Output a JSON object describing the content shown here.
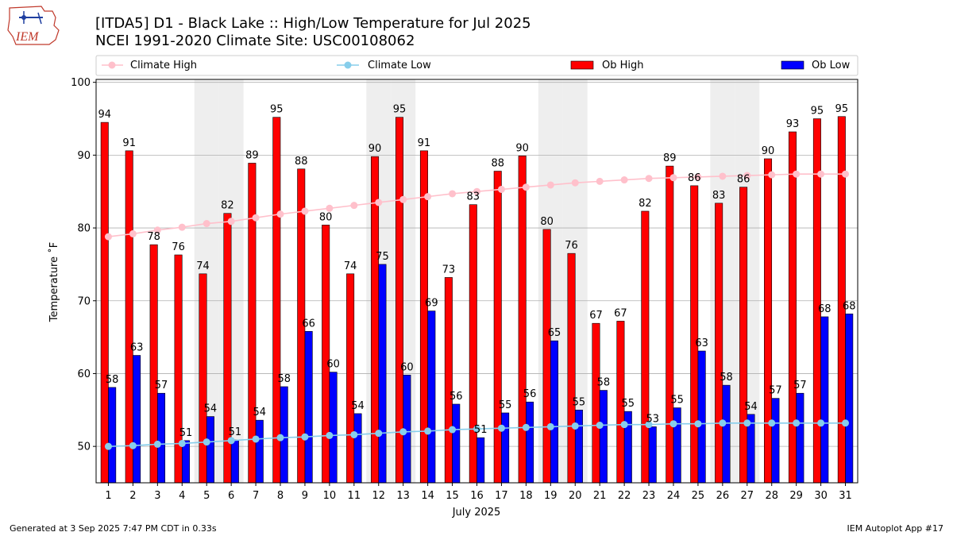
{
  "logo": {
    "text": "IEM"
  },
  "chart_data": {
    "type": "bar",
    "title": "[ITDA5] D1 - Black Lake  :: High/Low Temperature for Jul 2025",
    "subtitle": "NCEI 1991-2020 Climate Site: USC00108062",
    "xlabel": "July 2025",
    "ylabel": "Temperature ˚F",
    "ylim": [
      45,
      100.4
    ],
    "yticks": [
      50,
      60,
      70,
      80,
      90,
      100
    ],
    "categories": [
      "1",
      "2",
      "3",
      "4",
      "5",
      "6",
      "7",
      "8",
      "9",
      "10",
      "11",
      "12",
      "13",
      "14",
      "15",
      "16",
      "17",
      "18",
      "19",
      "20",
      "21",
      "22",
      "23",
      "24",
      "25",
      "26",
      "27",
      "28",
      "29",
      "30",
      "31"
    ],
    "weekend_shading_days": [
      5,
      6,
      12,
      13,
      19,
      20,
      26,
      27
    ],
    "grid": "horizontal",
    "legend_placement": "top",
    "series": [
      {
        "name": "Climate High",
        "kind": "line",
        "color": "#ffc0cb",
        "values": [
          78.8,
          79.2,
          79.7,
          80.1,
          80.6,
          80.9,
          81.4,
          81.9,
          82.3,
          82.7,
          83.1,
          83.5,
          83.9,
          84.3,
          84.7,
          85.0,
          85.3,
          85.6,
          85.9,
          86.2,
          86.4,
          86.6,
          86.8,
          86.9,
          87.0,
          87.1,
          87.2,
          87.3,
          87.4,
          87.4,
          87.4
        ]
      },
      {
        "name": "Climate Low",
        "kind": "line",
        "color": "#87ceeb",
        "values": [
          50.0,
          50.1,
          50.3,
          50.4,
          50.6,
          50.8,
          51.0,
          51.2,
          51.3,
          51.5,
          51.6,
          51.8,
          52.0,
          52.1,
          52.3,
          52.4,
          52.5,
          52.6,
          52.7,
          52.8,
          52.9,
          53.0,
          53.0,
          53.1,
          53.1,
          53.2,
          53.2,
          53.2,
          53.2,
          53.2,
          53.2
        ]
      },
      {
        "name": "Ob High",
        "kind": "bar",
        "color": "#ff0000",
        "values": [
          94.5,
          90.6,
          77.7,
          76.3,
          73.7,
          82.0,
          88.9,
          95.2,
          88.1,
          80.4,
          73.7,
          89.8,
          95.2,
          90.6,
          73.2,
          83.2,
          87.8,
          89.9,
          79.8,
          76.5,
          66.9,
          67.2,
          82.3,
          88.5,
          85.8,
          83.4,
          85.6,
          89.5,
          93.2,
          95.0,
          95.3
        ],
        "labels": [
          "94",
          "91",
          "78",
          "76",
          "74",
          "82",
          "89",
          "95",
          "88",
          "80",
          "74",
          "90",
          "95",
          "91",
          "73",
          "83",
          "88",
          "90",
          "80",
          "76",
          "67",
          "67",
          "82",
          "89",
          "86",
          "83",
          "86",
          "90",
          "93",
          "95",
          "95"
        ]
      },
      {
        "name": "Ob Low",
        "kind": "bar",
        "color": "#0000ff",
        "values": [
          58.1,
          62.5,
          57.3,
          50.8,
          54.1,
          50.9,
          53.6,
          58.2,
          65.8,
          60.2,
          54.5,
          75.0,
          59.8,
          68.6,
          55.8,
          51.2,
          54.6,
          56.1,
          64.5,
          55.0,
          57.7,
          54.8,
          52.7,
          55.3,
          63.1,
          58.4,
          54.4,
          56.6,
          57.3,
          67.8,
          68.2
        ],
        "labels": [
          "58",
          "63",
          "57",
          "51",
          "54",
          "51",
          "54",
          "58",
          "66",
          "60",
          "54",
          "75",
          "60",
          "69",
          "56",
          "51",
          "55",
          "56",
          "65",
          "55",
          "58",
          "55",
          "53",
          "55",
          "63",
          "58",
          "54",
          "57",
          "57",
          "68",
          "68"
        ]
      }
    ]
  },
  "footer": {
    "left": "Generated at 3 Sep 2025 7:47 PM CDT in 0.33s",
    "right": "IEM Autoplot App #17"
  }
}
